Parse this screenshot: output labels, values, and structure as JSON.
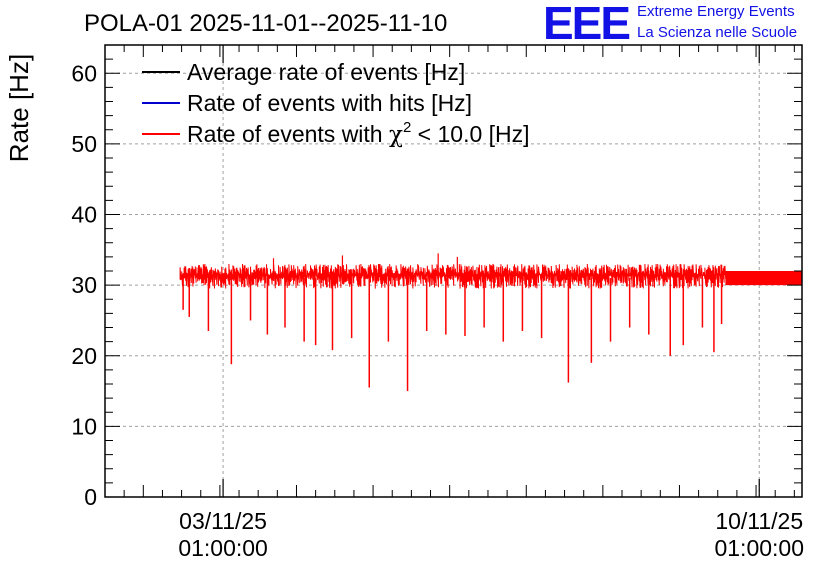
{
  "header": {
    "title": "POLA-01 2025-11-01--2025-11-10",
    "logo_text": "EEE",
    "logo_line1": "Extreme Energy Events",
    "logo_line2": "La Scienza nelle Scuole"
  },
  "colors": {
    "average": "#000000",
    "hits": "#0000cc",
    "chi2": "#ff0000",
    "grid": "#a0a0a0",
    "logo": "#1212e6"
  },
  "chart_data": {
    "type": "line",
    "title": "POLA-01 2025-11-01--2025-11-10",
    "xlabel": "",
    "ylabel": "Rate [Hz]",
    "ylim": [
      0,
      64
    ],
    "yticks": [
      0,
      10,
      20,
      30,
      40,
      50,
      60
    ],
    "ytick_labels": [
      "0",
      "10",
      "20",
      "30",
      "40",
      "50",
      "60"
    ],
    "xlim_days": [
      0.5,
      9.6
    ],
    "xticks": [
      {
        "day": 2.0417,
        "line1": "03/11/25",
        "line2": "01:00:00"
      },
      {
        "day": 9.0417,
        "line1": "10/11/25",
        "line2": "01:00:00"
      }
    ],
    "grid": true,
    "legend_position": "top-left",
    "legend": [
      {
        "label": "Average rate of events [Hz]",
        "color": "#000000"
      },
      {
        "label": "Rate of events with hits [Hz]",
        "color": "#0000cc"
      },
      {
        "label_prefix": "Rate of events with ",
        "label_symbol": "χ",
        "label_sup": "2",
        "label_suffix": " < 10.0 [Hz]",
        "color": "#ff0000"
      }
    ],
    "series": [
      {
        "name": "Rate of events with chi2 < 10.0 [Hz]",
        "color": "#ff0000",
        "data_start_day": 1.48,
        "data_end_day": 9.6,
        "baseline": 31.0,
        "band_low": 29.5,
        "band_high": 33.0,
        "steady_from_day": 8.6,
        "steady_low": 30.0,
        "steady_high": 32.0,
        "dips": [
          {
            "day": 1.52,
            "value": 26.5
          },
          {
            "day": 1.6,
            "value": 25.5
          },
          {
            "day": 1.85,
            "value": 23.5
          },
          {
            "day": 2.15,
            "value": 18.8
          },
          {
            "day": 2.4,
            "value": 25.0
          },
          {
            "day": 2.62,
            "value": 23.0
          },
          {
            "day": 2.85,
            "value": 24.0
          },
          {
            "day": 3.1,
            "value": 22.0
          },
          {
            "day": 3.25,
            "value": 21.5
          },
          {
            "day": 3.47,
            "value": 20.8
          },
          {
            "day": 3.72,
            "value": 22.5
          },
          {
            "day": 3.95,
            "value": 15.5
          },
          {
            "day": 4.2,
            "value": 22.0
          },
          {
            "day": 4.45,
            "value": 15.0
          },
          {
            "day": 4.7,
            "value": 23.5
          },
          {
            "day": 4.95,
            "value": 23.0
          },
          {
            "day": 5.2,
            "value": 22.8
          },
          {
            "day": 5.45,
            "value": 24.0
          },
          {
            "day": 5.7,
            "value": 22.0
          },
          {
            "day": 5.95,
            "value": 23.5
          },
          {
            "day": 6.2,
            "value": 22.5
          },
          {
            "day": 6.55,
            "value": 16.2
          },
          {
            "day": 6.85,
            "value": 19.0
          },
          {
            "day": 7.1,
            "value": 22.0
          },
          {
            "day": 7.35,
            "value": 24.0
          },
          {
            "day": 7.6,
            "value": 23.0
          },
          {
            "day": 7.88,
            "value": 20.0
          },
          {
            "day": 8.05,
            "value": 21.5
          },
          {
            "day": 8.3,
            "value": 24.0
          },
          {
            "day": 8.45,
            "value": 20.5
          },
          {
            "day": 8.55,
            "value": 24.5
          }
        ],
        "peaks": [
          {
            "day": 3.6,
            "value": 34.2
          },
          {
            "day": 4.85,
            "value": 34.5
          },
          {
            "day": 5.1,
            "value": 34.0
          },
          {
            "day": 2.7,
            "value": 33.8
          }
        ]
      }
    ]
  }
}
